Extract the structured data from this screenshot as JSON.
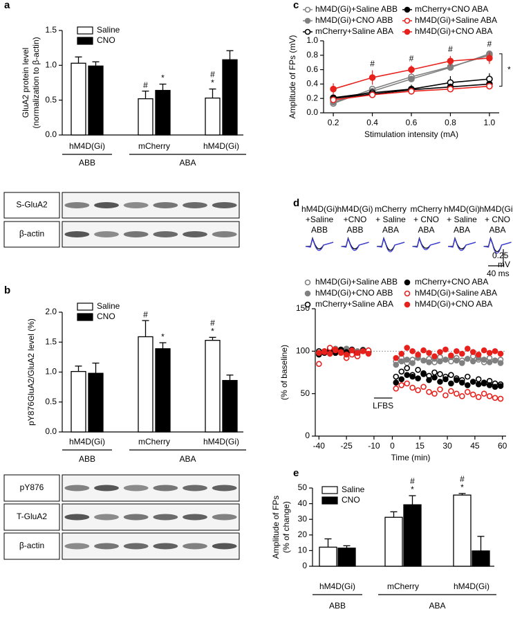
{
  "chart_data": [
    {
      "type": "bar",
      "panel": "a",
      "ylabel": [
        "GluA2 protein level",
        "(normalization to β-actin)"
      ],
      "categories": [
        "hM4D(Gi)",
        "mCherry",
        "hM4D(Gi)"
      ],
      "groups": [
        "ABB",
        "ABA"
      ],
      "series": [
        {
          "name": "Saline",
          "color": "#ffffff",
          "values": [
            1.03,
            0.52,
            0.53
          ],
          "errors": [
            0.09,
            0.11,
            0.13
          ],
          "annotations": [
            null,
            [
              "#"
            ],
            [
              "#",
              "*"
            ]
          ]
        },
        {
          "name": "CNO",
          "color": "#000000",
          "values": [
            0.99,
            0.64,
            1.08
          ],
          "errors": [
            0.06,
            0.09,
            0.13
          ],
          "annotations": [
            null,
            [
              "*"
            ],
            null
          ]
        }
      ],
      "ylim": [
        0,
        1.5
      ],
      "yticks": [
        {
          "value": 0,
          "label": "0.0"
        },
        0.5,
        {
          "value": 1,
          "label": "1.0"
        },
        1.5
      ],
      "legend": "top-left",
      "blot_labels": [
        "S-GluA2",
        "β-actin"
      ]
    },
    {
      "type": "bar",
      "panel": "b",
      "ylabel": [
        "pY876GluA2/GluA2 level (%)"
      ],
      "categories": [
        "hM4D(Gi)",
        "mCherry",
        "hM4D(Gi)"
      ],
      "groups": [
        "ABB",
        "ABA"
      ],
      "series": [
        {
          "name": "Saline",
          "color": "#ffffff",
          "values": [
            1.01,
            1.59,
            1.53
          ],
          "errors": [
            0.09,
            0.27,
            0.05
          ],
          "annotations": [
            null,
            [
              "#"
            ],
            [
              "#",
              "*"
            ]
          ]
        },
        {
          "name": "CNO",
          "color": "#000000",
          "values": [
            0.98,
            1.39,
            0.86
          ],
          "errors": [
            0.17,
            0.1,
            0.09
          ],
          "annotations": [
            null,
            [
              "*"
            ],
            null
          ]
        }
      ],
      "ylim": [
        0,
        2.0
      ],
      "yticks": [
        {
          "value": 0,
          "label": "0.0"
        },
        0.5,
        {
          "value": 1,
          "label": "1.0"
        },
        1.5,
        {
          "value": 2,
          "label": "2.0"
        }
      ],
      "legend": "top-left",
      "blot_labels": [
        "pY876",
        "T-GluA2",
        "β-actin"
      ]
    },
    {
      "type": "line",
      "panel": "c",
      "ylabel": [
        "Amplitude of FPs (mV)"
      ],
      "xlabel": "Stimulation intensity (mA)",
      "x": [
        0.2,
        0.4,
        0.6,
        0.8,
        1.0
      ],
      "series": [
        {
          "name": "hM4D(Gi)+Saline ABB",
          "color": "#808080",
          "marker": "open",
          "values": [
            0.13,
            0.33,
            0.5,
            0.64,
            0.8
          ],
          "errors": [
            0.02,
            0.03,
            0.03,
            0.03,
            0.04
          ]
        },
        {
          "name": "hM4D(Gi)+CNO ABB",
          "color": "#808080",
          "marker": "filled",
          "values": [
            0.15,
            0.3,
            0.47,
            0.63,
            0.82
          ],
          "errors": [
            0.02,
            0.03,
            0.03,
            0.03,
            0.04
          ]
        },
        {
          "name": "mCherry+Saline ABA",
          "color": "#000000",
          "marker": "open",
          "values": [
            0.21,
            0.28,
            0.33,
            0.42,
            0.47
          ],
          "errors": [
            0.03,
            0.04,
            0.06,
            0.09,
            0.08
          ]
        },
        {
          "name": "mCherry+CNO ABA",
          "color": "#000000",
          "marker": "filled",
          "values": [
            0.2,
            0.26,
            0.32,
            0.36,
            0.4
          ],
          "errors": [
            0.02,
            0.03,
            0.04,
            0.04,
            0.04
          ]
        },
        {
          "name": "hM4D(Gi)+Saline ABA",
          "color": "#e8211d",
          "marker": "open",
          "values": [
            0.18,
            0.25,
            0.3,
            0.33,
            0.37
          ],
          "errors": [
            0.02,
            0.03,
            0.03,
            0.03,
            0.03
          ]
        },
        {
          "name": "hM4D(Gi)+CNO ABA",
          "color": "#e8211d",
          "marker": "filled",
          "values": [
            0.33,
            0.49,
            0.6,
            0.72,
            0.76
          ],
          "errors": [
            0.08,
            0.1,
            0.06,
            0.07,
            0.08
          ]
        }
      ],
      "x_annotations": [
        null,
        "#",
        "#",
        "#",
        "#"
      ],
      "bracket_label": "*",
      "xlim": [
        0.15,
        1.05
      ],
      "xticks": [
        0.2,
        0.4,
        0.6,
        0.8,
        {
          "value": 1,
          "label": "1.0"
        }
      ],
      "ylim": [
        0,
        1.0
      ],
      "yticks": [
        {
          "value": 0,
          "label": "0.0"
        },
        0.2,
        0.4,
        0.6,
        0.8,
        {
          "value": 1,
          "label": "1.0"
        }
      ]
    },
    {
      "type": "scatter",
      "panel": "d",
      "traces": [
        [
          "hM4D(Gi)",
          "+Saline",
          "ABB"
        ],
        [
          "hM4D(Gi)",
          "+CNO",
          "ABB"
        ],
        [
          "mCherry",
          "+ Saline",
          "ABA"
        ],
        [
          "mCherry",
          "+ CNO",
          "ABA"
        ],
        [
          "hM4D(Gi)",
          "+ Saline",
          "ABA"
        ],
        [
          "hM4D(Gi)",
          "+ CNO",
          "ABA"
        ]
      ],
      "scale_bar": [
        "0.25",
        "mV",
        "40 ms"
      ],
      "ylabel": [
        "(% of baseline)"
      ],
      "xlabel": "Time (min)",
      "x": [
        -40,
        -37,
        -34,
        -31,
        -28,
        -25,
        -22,
        -19,
        -16,
        -13,
        2,
        5,
        8,
        11,
        14,
        17,
        20,
        23,
        26,
        29,
        32,
        35,
        38,
        41,
        44,
        47,
        50,
        53,
        56,
        59
      ],
      "series": [
        {
          "name": "hM4D(Gi)+Saline ABB",
          "color": "#808080",
          "marker": "open",
          "values": [
            98,
            100,
            97,
            103,
            101,
            99,
            96,
            100,
            102,
            99,
            88,
            92,
            86,
            90,
            94,
            89,
            91,
            87,
            93,
            90,
            88,
            92,
            89,
            91,
            94,
            90,
            87,
            92,
            89,
            90
          ]
        },
        {
          "name": "hM4D(Gi)+CNO ABB",
          "color": "#808080",
          "marker": "filled",
          "values": [
            97,
            99,
            102,
            98,
            100,
            103,
            97,
            99,
            101,
            98,
            84,
            88,
            90,
            86,
            92,
            89,
            87,
            91,
            88,
            90,
            93,
            89,
            86,
            91,
            88,
            92,
            90,
            87,
            89,
            86
          ]
        },
        {
          "name": "mCherry+Saline ABA",
          "color": "#000000",
          "marker": "open",
          "values": [
            100,
            98,
            103,
            99,
            101,
            97,
            102,
            98,
            100,
            99,
            70,
            76,
            80,
            72,
            78,
            74,
            71,
            75,
            73,
            70,
            72,
            68,
            66,
            70,
            64,
            67,
            63,
            65,
            62,
            61
          ]
        },
        {
          "name": "mCherry+CNO ABA",
          "color": "#000000",
          "marker": "filled",
          "values": [
            96,
            99,
            101,
            98,
            102,
            99,
            100,
            97,
            101,
            98,
            63,
            67,
            72,
            70,
            68,
            73,
            66,
            69,
            64,
            67,
            62,
            66,
            63,
            60,
            64,
            61,
            62,
            60,
            58,
            59
          ]
        },
        {
          "name": "hM4D(Gi)+Saline ABA",
          "color": "#e8211d",
          "marker": "open",
          "values": [
            85,
            99,
            104,
            101,
            98,
            92,
            96,
            94,
            100,
            101,
            56,
            60,
            62,
            57,
            54,
            58,
            52,
            50,
            55,
            48,
            53,
            50,
            47,
            52,
            49,
            46,
            50,
            47,
            45,
            44
          ]
        },
        {
          "name": "hM4D(Gi)+CNO ABA",
          "color": "#e8211d",
          "marker": "filled",
          "values": [
            98,
            100,
            97,
            102,
            99,
            96,
            101,
            98,
            100,
            97,
            92,
            97,
            104,
            100,
            96,
            101,
            98,
            94,
            99,
            102,
            95,
            100,
            97,
            103,
            99,
            96,
            101,
            98,
            100,
            97
          ]
        }
      ],
      "baseline": 100,
      "stimulus": {
        "label": "LFBS",
        "start": -10,
        "end": 0
      },
      "xlim": [
        -42,
        62
      ],
      "xticks": [
        -40,
        -25,
        -10,
        0,
        15,
        30,
        45,
        60
      ],
      "ylim": [
        0,
        150
      ],
      "yticks": [
        0,
        50,
        100,
        150
      ]
    },
    {
      "type": "bar",
      "panel": "e",
      "ylabel": [
        "Amplitude of FPs",
        "(% of change)"
      ],
      "categories": [
        "hM4D(Gi)",
        "mCherry",
        "hM4D(Gi)"
      ],
      "groups": [
        "ABB",
        "ABA"
      ],
      "series": [
        {
          "name": "Saline",
          "color": "#ffffff",
          "values": [
            12.2,
            31.3,
            45.5
          ],
          "errors": [
            5.3,
            3.5,
            1.0
          ],
          "annotations": [
            null,
            null,
            [
              "#",
              "*"
            ]
          ]
        },
        {
          "name": "CNO",
          "color": "#000000",
          "values": [
            11.6,
            39.3,
            9.8
          ],
          "errors": [
            1.5,
            5.8,
            9.3
          ],
          "annotations": [
            null,
            [
              "#",
              "*"
            ],
            null
          ]
        }
      ],
      "ylim": [
        0,
        50
      ],
      "yticks": [
        0,
        10,
        20,
        30,
        40,
        50
      ],
      "legend": "top-left"
    }
  ]
}
